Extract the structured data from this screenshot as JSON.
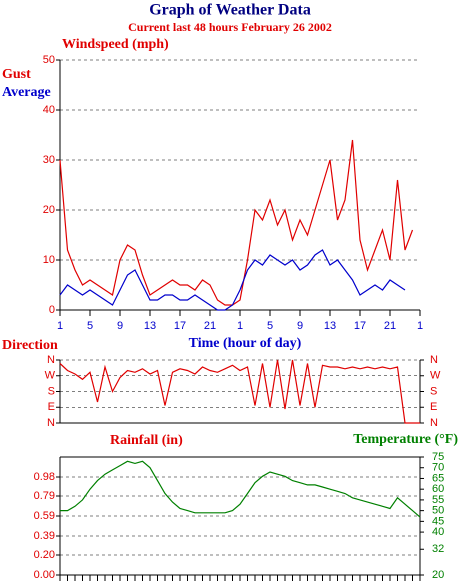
{
  "chart_data": [
    {
      "type": "line",
      "title": "Graph of Weather Data",
      "subtitle": "Current last 48 hours February 26 2002",
      "y_label": "Windspeed (mph)",
      "x_label": "Time (hour of day)",
      "x": [
        0,
        1,
        2,
        3,
        4,
        5,
        6,
        7,
        8,
        9,
        10,
        11,
        12,
        13,
        14,
        15,
        16,
        17,
        18,
        19,
        20,
        21,
        22,
        23,
        24,
        25,
        26,
        27,
        28,
        29,
        30,
        31,
        32,
        33,
        34,
        35,
        36,
        37,
        38,
        39,
        40,
        41,
        42,
        43,
        44,
        45,
        46,
        47,
        48
      ],
      "xlim": [
        0,
        48
      ],
      "xticks": [
        {
          "value": 0,
          "label": "1"
        },
        {
          "value": 4,
          "label": "5"
        },
        {
          "value": 8,
          "label": "9"
        },
        {
          "value": 12,
          "label": "13"
        },
        {
          "value": 16,
          "label": "17"
        },
        {
          "value": 20,
          "label": "21"
        },
        {
          "value": 24,
          "label": "1"
        },
        {
          "value": 28,
          "label": "5"
        },
        {
          "value": 32,
          "label": "9"
        },
        {
          "value": 36,
          "label": "13"
        },
        {
          "value": 40,
          "label": "17"
        },
        {
          "value": 44,
          "label": "21"
        },
        {
          "value": 48,
          "label": "1"
        }
      ],
      "ylim": [
        0,
        50
      ],
      "yticks": [
        0,
        10,
        20,
        30,
        40,
        50
      ],
      "grid": true,
      "series": [
        {
          "name": "Gust",
          "color": "#e00000",
          "values": [
            30,
            12,
            8,
            5,
            6,
            5,
            4,
            3,
            10,
            13,
            12,
            7,
            3,
            4,
            5,
            6,
            5,
            5,
            4,
            6,
            5,
            2,
            1,
            1,
            2,
            10,
            20,
            18,
            22,
            17,
            20,
            14,
            18,
            15,
            20,
            25,
            30,
            18,
            22,
            34,
            14,
            8,
            12,
            16,
            10,
            26,
            12,
            16,
            null
          ]
        },
        {
          "name": "Average",
          "color": "#0000cc",
          "values": [
            3,
            5,
            4,
            3,
            4,
            3,
            2,
            1,
            4,
            7,
            8,
            5,
            2,
            2,
            3,
            3,
            2,
            2,
            3,
            2,
            1,
            0,
            0,
            1,
            4,
            8,
            10,
            9,
            11,
            10,
            9,
            10,
            8,
            9,
            11,
            12,
            9,
            10,
            8,
            6,
            3,
            4,
            5,
            4,
            6,
            5,
            4,
            null,
            null
          ]
        }
      ]
    },
    {
      "type": "line",
      "y_label": "Direction",
      "x": [
        0,
        1,
        2,
        3,
        4,
        5,
        6,
        7,
        8,
        9,
        10,
        11,
        12,
        13,
        14,
        15,
        16,
        17,
        18,
        19,
        20,
        21,
        22,
        23,
        24,
        25,
        26,
        27,
        28,
        29,
        30,
        31,
        32,
        33,
        34,
        35,
        36,
        37,
        38,
        39,
        40,
        41,
        42,
        43,
        44,
        45,
        46,
        47,
        48
      ],
      "xlim": [
        0,
        48
      ],
      "ylim": [
        0,
        360
      ],
      "yticks": [
        {
          "value": 0,
          "label": "N"
        },
        {
          "value": 90,
          "label": "E"
        },
        {
          "value": 180,
          "label": "S"
        },
        {
          "value": 270,
          "label": "W"
        },
        {
          "value": 360,
          "label": "N"
        }
      ],
      "series": [
        {
          "name": "Direction",
          "color": "#e00000",
          "values": [
            340,
            300,
            280,
            250,
            290,
            120,
            320,
            180,
            260,
            300,
            290,
            310,
            280,
            300,
            100,
            290,
            310,
            300,
            280,
            320,
            300,
            290,
            310,
            330,
            300,
            320,
            100,
            340,
            90,
            360,
            80,
            360,
            100,
            340,
            90,
            330,
            320,
            320,
            310,
            320,
            310,
            320,
            310,
            320,
            310,
            320,
            0,
            0,
            0
          ]
        }
      ]
    },
    {
      "type": "line",
      "y_label": "Rainfall (in)",
      "x": [
        0,
        1,
        2,
        3,
        4,
        5,
        6,
        7,
        8,
        9,
        10,
        11,
        12,
        13,
        14,
        15,
        16,
        17,
        18,
        19,
        20,
        21,
        22,
        23,
        24,
        25,
        26,
        27,
        28,
        29,
        30,
        31,
        32,
        33,
        34,
        35,
        36,
        37,
        38,
        39,
        40,
        41,
        42,
        43,
        44,
        45,
        46,
        47,
        48
      ],
      "xlim": [
        0,
        48
      ],
      "ylim": [
        0,
        1.18
      ],
      "yticks": [
        {
          "value": 0,
          "label": "0.00"
        },
        {
          "value": 0.2,
          "label": "0.20"
        },
        0.39,
        0.59,
        0.79,
        0.98
      ],
      "y2lim": [
        20,
        75
      ],
      "y2ticks": [
        20,
        32,
        40,
        45,
        50,
        55,
        60,
        65,
        70,
        75
      ],
      "grid": true,
      "series": [
        {
          "name": "Temperature (°F)",
          "color": "#008000",
          "axis": "y2",
          "values": [
            50,
            50,
            52,
            55,
            60,
            64,
            67,
            69,
            71,
            73,
            72,
            73,
            70,
            64,
            58,
            54,
            51,
            50,
            49,
            49,
            49,
            49,
            49,
            50,
            53,
            58,
            63,
            66,
            68,
            67,
            66,
            64,
            63,
            62,
            62,
            61,
            60,
            59,
            58,
            56,
            55,
            54,
            53,
            52,
            51,
            56,
            53,
            50,
            47
          ]
        }
      ]
    }
  ]
}
